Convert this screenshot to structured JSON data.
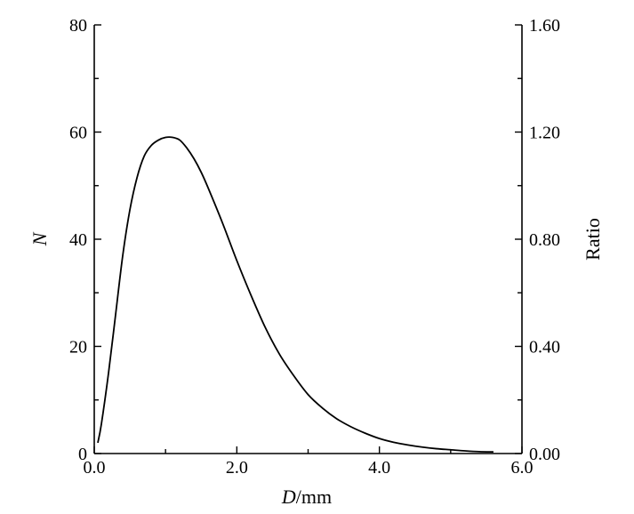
{
  "chart_data": {
    "type": "line",
    "title": "",
    "xlabel_italic": "D",
    "xlabel_unit": "/mm",
    "ylabel": "N",
    "ylabel_right": "Ratio",
    "xlim": [
      0,
      6
    ],
    "ylim": [
      0,
      80
    ],
    "ylim_right": [
      0,
      1.6
    ],
    "x_ticks": [
      0,
      2,
      4,
      6
    ],
    "x_tick_labels": [
      "0.0",
      "2.0",
      "4.0",
      "6.0"
    ],
    "y_ticks": [
      0,
      20,
      40,
      60,
      80
    ],
    "y_tick_labels": [
      "0",
      "20",
      "40",
      "60",
      "80"
    ],
    "y_right_ticks": [
      0,
      0.4,
      0.8,
      1.2,
      1.6
    ],
    "y_right_tick_labels": [
      "0.00",
      "0.40",
      "0.80",
      "1.20",
      "1.60"
    ],
    "grid": false,
    "legend": "none",
    "series": [
      {
        "x": [
          0.05,
          0.1,
          0.2,
          0.3,
          0.4,
          0.5,
          0.6,
          0.7,
          0.8,
          0.9,
          1.0,
          1.1,
          1.2,
          1.3,
          1.4,
          1.5,
          1.6,
          1.8,
          2.0,
          2.2,
          2.4,
          2.6,
          2.8,
          3.0,
          3.2,
          3.4,
          3.6,
          3.8,
          4.0,
          4.2,
          4.4,
          4.6,
          4.8,
          5.0,
          5.2,
          5.4,
          5.6
        ],
        "y": [
          2.0,
          5.5,
          15.0,
          26.0,
          37.0,
          45.5,
          51.5,
          55.5,
          57.5,
          58.5,
          59.0,
          59.0,
          58.5,
          57.0,
          55.0,
          52.5,
          49.5,
          43.0,
          36.0,
          29.5,
          23.5,
          18.5,
          14.5,
          11.0,
          8.5,
          6.5,
          5.0,
          3.8,
          2.8,
          2.1,
          1.6,
          1.2,
          0.9,
          0.7,
          0.5,
          0.35,
          0.3
        ]
      }
    ]
  }
}
